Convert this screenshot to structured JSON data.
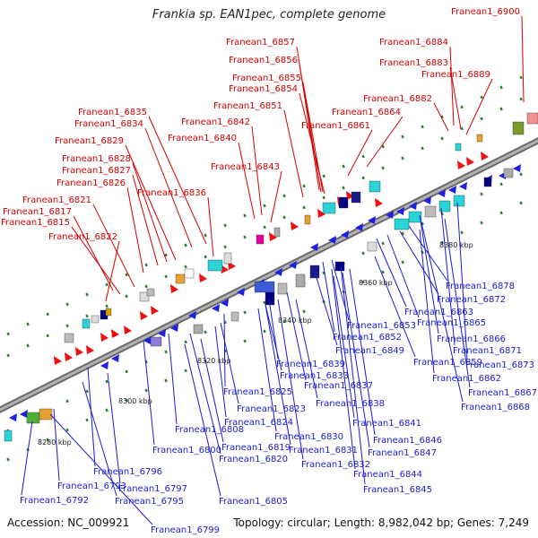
{
  "title": "Frankia sp. EAN1pec, complete genome",
  "accession_text": "Accession: NC_009921",
  "summary_text": "Topology: circular; Length: 8,982,042 bp; Genes: 7,249",
  "colors": {
    "top_label": "#d40000",
    "bottom_label": "#1a1ad4",
    "forward_gene": "#ee1111",
    "reverse_gene": "#1f1fe0",
    "tick": "#2f7a2f",
    "backbone": "#8c8c8c"
  },
  "scale_labels": [
    "8280 kbp",
    "8300 kbp",
    "8320 kbp",
    "8340 kbp",
    "8360 kbp",
    "8380 kbp"
  ],
  "top_labels": [
    "Franean1_6900",
    "Franean1_6884",
    "Franean1_6883",
    "Franean1_6889",
    "Franean1_6882",
    "Franean1_6864",
    "Franean1_6861",
    "Franean1_6857",
    "Franean1_6856",
    "Franean1_6855",
    "Franean1_6854",
    "Franean1_6851",
    "Franean1_6842",
    "Franean1_6840",
    "Franean1_6843",
    "Franean1_6835",
    "Franean1_6834",
    "Franean1_6829",
    "Franean1_6828",
    "Franean1_6827",
    "Franean1_6826",
    "Franean1_6836",
    "Franean1_6821",
    "Franean1_6817",
    "Franean1_6815",
    "Franean1_6822"
  ],
  "bottom_labels": [
    "Franean1_6878",
    "Franean1_6872",
    "Franean1_6863",
    "Franean1_6865",
    "Franean1_6866",
    "Franean1_6871",
    "Franean1_6873",
    "Franean1_6853",
    "Franean1_6852",
    "Franean1_6849",
    "Franean1_6859",
    "Franean1_6839",
    "Franean1_6833",
    "Franean1_6837",
    "Franean1_6862",
    "Franean1_6867",
    "Franean1_6868",
    "Franean1_6825",
    "Franean1_6838",
    "Franean1_6823",
    "Franean1_6824",
    "Franean1_6841",
    "Franean1_6830",
    "Franean1_6846",
    "Franean1_6808",
    "Franean1_6831",
    "Franean1_6847",
    "Franean1_6800",
    "Franean1_6819",
    "Franean1_6832",
    "Franean1_6820",
    "Franean1_6844",
    "Franean1_6796",
    "Franean1_6845",
    "Franean1_6793",
    "Franean1_6797",
    "Franean1_6795",
    "Franean1_6805",
    "Franean1_6792",
    "Franean1_6799"
  ]
}
